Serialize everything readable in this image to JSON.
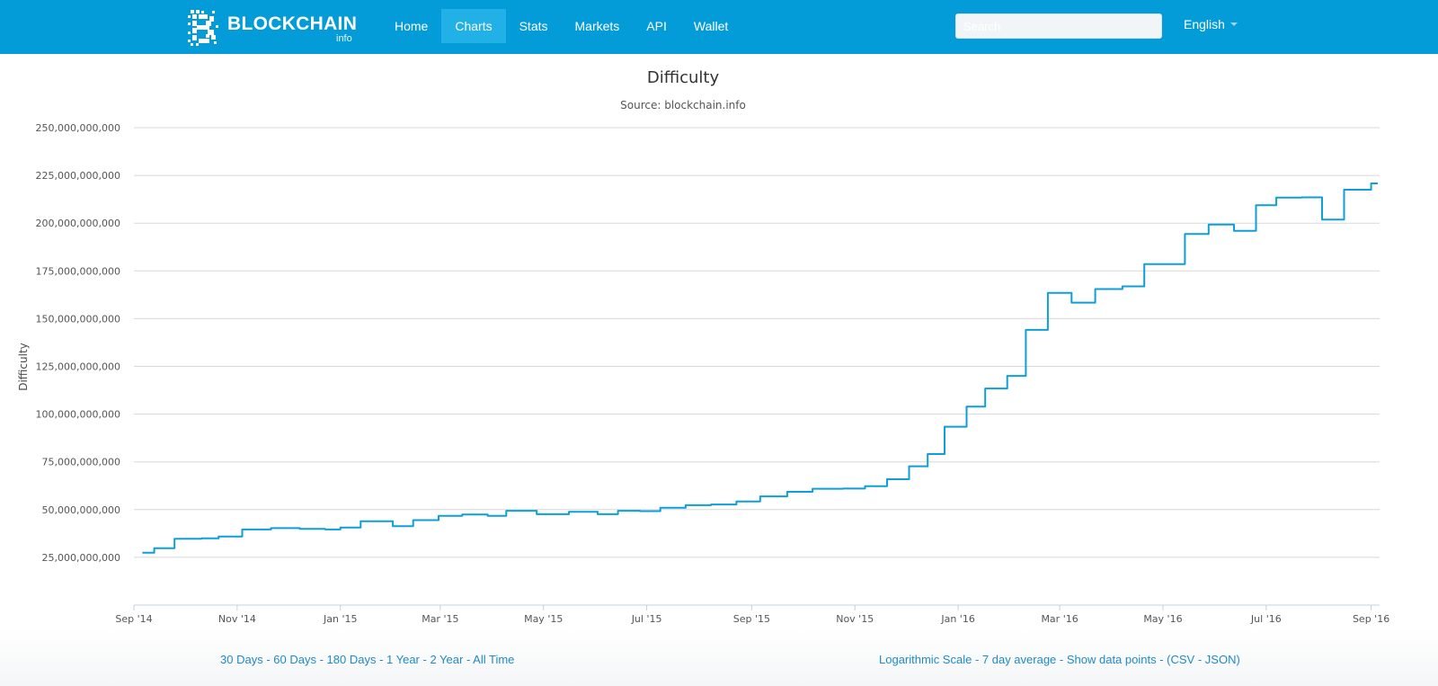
{
  "nav": {
    "brand": "BLOCKCHAIN",
    "brand_sub": "info",
    "items": [
      {
        "label": "Home",
        "active": false
      },
      {
        "label": "Charts",
        "active": true
      },
      {
        "label": "Stats",
        "active": false
      },
      {
        "label": "Markets",
        "active": false
      },
      {
        "label": "API",
        "active": false
      },
      {
        "label": "Wallet",
        "active": false
      }
    ],
    "search_placeholder": "Search",
    "language": "English"
  },
  "colors": {
    "navbar": "#049cd8",
    "nav_active": "#22b1e6",
    "series": "#0e9ed8",
    "link": "#1f8ac7"
  },
  "chart_data": {
    "type": "line",
    "title": "Difficulty",
    "subtitle": "Source: blockchain.info",
    "ylabel": "Difficulty",
    "xlabel": "",
    "grid": true,
    "legend": "none",
    "ylim": [
      0,
      250000000000
    ],
    "xlim": [
      "2014-09-01",
      "2016-09-06"
    ],
    "y_ticks": [
      "25,000,000,000",
      "50,000,000,000",
      "75,000,000,000",
      "100,000,000,000",
      "125,000,000,000",
      "150,000,000,000",
      "175,000,000,000",
      "200,000,000,000",
      "225,000,000,000",
      "250,000,000,000"
    ],
    "x_ticks": [
      "Sep '14",
      "Nov '14",
      "Jan '15",
      "Mar '15",
      "May '15",
      "Jul '15",
      "Sep '15",
      "Nov '15",
      "Jan '16",
      "Mar '16",
      "May '16",
      "Jul '16",
      "Sep '16"
    ],
    "series": [
      {
        "values": [
          [
            "2014-09-06",
            27.4
          ],
          [
            "2014-09-13",
            29.8
          ],
          [
            "2014-09-25",
            34.7
          ],
          [
            "2014-10-11",
            35.0
          ],
          [
            "2014-10-21",
            35.9
          ],
          [
            "2014-11-04",
            39.6
          ],
          [
            "2014-11-21",
            40.3
          ],
          [
            "2014-12-08",
            39.9
          ],
          [
            "2014-12-23",
            39.6
          ],
          [
            "2015-01-01",
            40.6
          ],
          [
            "2015-01-13",
            43.9
          ],
          [
            "2015-02-01",
            41.3
          ],
          [
            "2015-02-13",
            44.5
          ],
          [
            "2015-02-28",
            46.7
          ],
          [
            "2015-03-14",
            47.4
          ],
          [
            "2015-03-29",
            46.7
          ],
          [
            "2015-04-09",
            49.4
          ],
          [
            "2015-04-27",
            47.6
          ],
          [
            "2015-05-16",
            48.8
          ],
          [
            "2015-06-02",
            47.6
          ],
          [
            "2015-06-14",
            49.4
          ],
          [
            "2015-06-27",
            49.2
          ],
          [
            "2015-07-09",
            51.0
          ],
          [
            "2015-07-24",
            52.3
          ],
          [
            "2015-08-08",
            52.7
          ],
          [
            "2015-08-23",
            54.3
          ],
          [
            "2015-09-06",
            56.9
          ],
          [
            "2015-09-22",
            59.3
          ],
          [
            "2015-10-07",
            60.9
          ],
          [
            "2015-10-25",
            61.0
          ],
          [
            "2015-11-07",
            62.3
          ],
          [
            "2015-11-20",
            65.9
          ],
          [
            "2015-12-03",
            72.7
          ],
          [
            "2015-12-14",
            79.1
          ],
          [
            "2015-12-24",
            93.4
          ],
          [
            "2016-01-06",
            103.9
          ],
          [
            "2016-01-17",
            113.4
          ],
          [
            "2016-01-30",
            120.0
          ],
          [
            "2016-02-10",
            144.1
          ],
          [
            "2016-02-23",
            163.5
          ],
          [
            "2016-03-08",
            158.4
          ],
          [
            "2016-03-22",
            165.5
          ],
          [
            "2016-04-07",
            166.9
          ],
          [
            "2016-04-20",
            178.6
          ],
          [
            "2016-05-14",
            194.3
          ],
          [
            "2016-05-28",
            199.3
          ],
          [
            "2016-06-12",
            196.0
          ],
          [
            "2016-06-25",
            209.4
          ],
          [
            "2016-07-07",
            213.4
          ],
          [
            "2016-07-22",
            213.5
          ],
          [
            "2016-08-03",
            201.9
          ],
          [
            "2016-08-16",
            217.5
          ],
          [
            "2016-09-01",
            220.8
          ],
          [
            "2016-09-05",
            220.8
          ]
        ]
      }
    ]
  },
  "footer": {
    "left_links": [
      "30 Days",
      "60 Days",
      "180 Days",
      "1 Year",
      "2 Year",
      "All Time"
    ],
    "right_links": [
      "Logarithmic Scale",
      "7 day average",
      "Show data points"
    ],
    "right_paren_open": "(",
    "csv": "CSV",
    "json": "JSON",
    "right_paren_close": ")"
  }
}
